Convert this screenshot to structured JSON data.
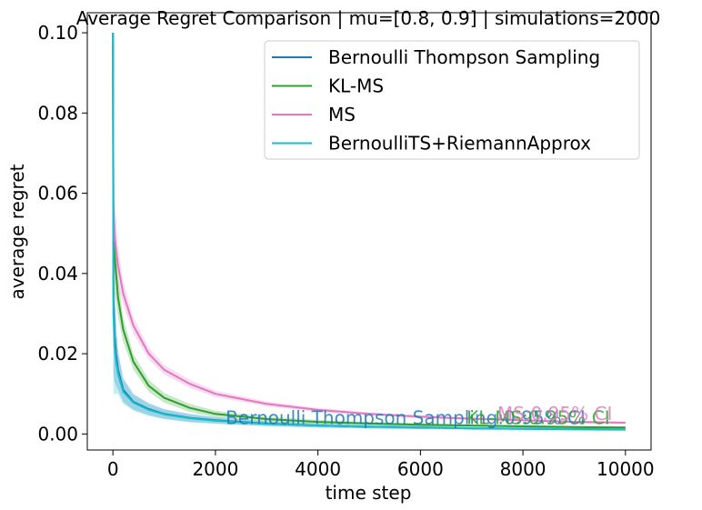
{
  "chart_data": {
    "type": "line",
    "title": "Average Regret Comparison | mu=[0.8, 0.9] | simulations=2000",
    "xlabel": "time step",
    "ylabel": "average regret",
    "xlim": [
      -500,
      10500
    ],
    "ylim": [
      -0.004,
      0.105
    ],
    "xticks": [
      0,
      2000,
      4000,
      6000,
      8000,
      10000
    ],
    "xtick_labels": [
      "0",
      "2000",
      "4000",
      "6000",
      "8000",
      "10000"
    ],
    "yticks": [
      0.0,
      0.02,
      0.04,
      0.06,
      0.08,
      0.1
    ],
    "ytick_labels": [
      "0.00",
      "0.02",
      "0.04",
      "0.06",
      "0.08",
      "0.10"
    ],
    "grid": false,
    "legend_position": "top-right",
    "x": [
      1,
      10,
      30,
      60,
      100,
      200,
      400,
      700,
      1000,
      1500,
      2000,
      3000,
      4000,
      5000,
      6000,
      7000,
      8000,
      9000,
      10000
    ],
    "series": [
      {
        "name": "Bernoulli Thompson Sampling",
        "color": "#1f77b4",
        "values": [
          0.1,
          0.035,
          0.025,
          0.02,
          0.016,
          0.011,
          0.008,
          0.0062,
          0.005,
          0.004,
          0.0034,
          0.0026,
          0.0021,
          0.0018,
          0.0016,
          0.0014,
          0.0013,
          0.0012,
          0.0011
        ],
        "ci_width": [
          0.0,
          0.02,
          0.012,
          0.008,
          0.005,
          0.003,
          0.002,
          0.0015,
          0.0012,
          0.001,
          0.0008,
          0.0006,
          0.0005,
          0.0004,
          0.0004,
          0.0003,
          0.0003,
          0.0003,
          0.0003
        ]
      },
      {
        "name": "KL-MS",
        "color": "#2ca02c",
        "values": [
          0.1,
          0.052,
          0.045,
          0.04,
          0.034,
          0.026,
          0.018,
          0.012,
          0.009,
          0.0065,
          0.005,
          0.0037,
          0.003,
          0.0026,
          0.0023,
          0.0021,
          0.0019,
          0.0017,
          0.0016
        ],
        "ci_width": [
          0.0,
          0.015,
          0.01,
          0.007,
          0.005,
          0.003,
          0.002,
          0.0015,
          0.0012,
          0.001,
          0.0008,
          0.0006,
          0.0005,
          0.0004,
          0.0004,
          0.0003,
          0.0003,
          0.0003,
          0.0003
        ]
      },
      {
        "name": "MS",
        "color": "#e377c2",
        "values": [
          0.1,
          0.058,
          0.05,
          0.046,
          0.042,
          0.035,
          0.027,
          0.02,
          0.016,
          0.0125,
          0.01,
          0.0075,
          0.006,
          0.005,
          0.0043,
          0.0038,
          0.0034,
          0.003,
          0.0028
        ],
        "ci_width": [
          0.0,
          0.015,
          0.01,
          0.007,
          0.005,
          0.003,
          0.002,
          0.0015,
          0.0012,
          0.001,
          0.0008,
          0.0006,
          0.0005,
          0.0004,
          0.0004,
          0.0003,
          0.0003,
          0.0003,
          0.0003
        ]
      },
      {
        "name": "BernoulliTS+RiemannApprox",
        "color": "#17becf",
        "values": [
          0.1,
          0.03,
          0.022,
          0.018,
          0.015,
          0.0105,
          0.0078,
          0.006,
          0.0049,
          0.0039,
          0.0033,
          0.0025,
          0.0021,
          0.0018,
          0.0016,
          0.0014,
          0.0013,
          0.0012,
          0.0011
        ],
        "ci_width": [
          0.0,
          0.02,
          0.012,
          0.008,
          0.005,
          0.003,
          0.002,
          0.0015,
          0.0012,
          0.001,
          0.0008,
          0.0006,
          0.0005,
          0.0004,
          0.0004,
          0.0003,
          0.0003,
          0.0003,
          0.0003
        ]
      }
    ],
    "annotations": [
      {
        "text": "Bernoulli Thompson Sampling:0.95% CI",
        "x": 2200,
        "y": 0.0025,
        "color": "#1f77b4"
      },
      {
        "text": "KL-MS:0.95% CI",
        "x": 6900,
        "y": 0.0025,
        "color": "#2ca02c"
      },
      {
        "text": "MS:0.95% CI",
        "x": 7500,
        "y": 0.0035,
        "color": "#e377c2"
      }
    ]
  }
}
